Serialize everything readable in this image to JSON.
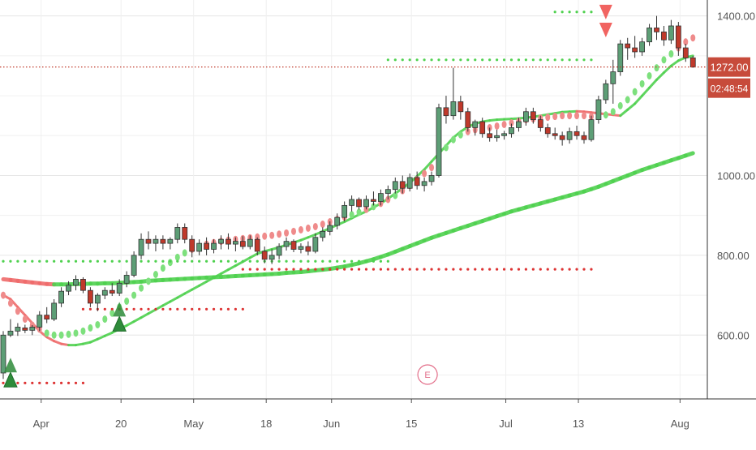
{
  "chart_data": {
    "type": "candlestick",
    "y_axis": {
      "ticks": [
        600,
        800,
        1000,
        1400
      ],
      "tick_labels": [
        "600.00",
        "800.00",
        "1000.00",
        "1400.00"
      ],
      "ylim": [
        440,
        1440
      ]
    },
    "x_axis": {
      "tick_labels": [
        "Apr",
        "20",
        "May",
        "18",
        "Jun",
        "15",
        "Jul",
        "13",
        "Aug"
      ]
    },
    "price_badges": {
      "last_price": "1272.00",
      "countdown": "02:48:54"
    },
    "event_marker": "E",
    "candles": [
      {
        "o": 505,
        "h": 610,
        "l": 490,
        "c": 600
      },
      {
        "o": 600,
        "h": 640,
        "l": 595,
        "c": 610
      },
      {
        "o": 610,
        "h": 630,
        "l": 598,
        "c": 620
      },
      {
        "o": 618,
        "h": 626,
        "l": 605,
        "c": 612
      },
      {
        "o": 612,
        "h": 625,
        "l": 600,
        "c": 620
      },
      {
        "o": 620,
        "h": 660,
        "l": 610,
        "c": 650
      },
      {
        "o": 650,
        "h": 670,
        "l": 630,
        "c": 640
      },
      {
        "o": 640,
        "h": 690,
        "l": 635,
        "c": 680
      },
      {
        "o": 680,
        "h": 720,
        "l": 670,
        "c": 710
      },
      {
        "o": 710,
        "h": 735,
        "l": 700,
        "c": 725
      },
      {
        "o": 725,
        "h": 750,
        "l": 712,
        "c": 740
      },
      {
        "o": 740,
        "h": 745,
        "l": 705,
        "c": 712
      },
      {
        "o": 712,
        "h": 720,
        "l": 670,
        "c": 680
      },
      {
        "o": 680,
        "h": 705,
        "l": 660,
        "c": 700
      },
      {
        "o": 700,
        "h": 720,
        "l": 690,
        "c": 712
      },
      {
        "o": 712,
        "h": 730,
        "l": 698,
        "c": 705
      },
      {
        "o": 705,
        "h": 740,
        "l": 698,
        "c": 730
      },
      {
        "o": 730,
        "h": 760,
        "l": 720,
        "c": 750
      },
      {
        "o": 750,
        "h": 810,
        "l": 745,
        "c": 800
      },
      {
        "o": 800,
        "h": 855,
        "l": 790,
        "c": 840
      },
      {
        "o": 840,
        "h": 860,
        "l": 815,
        "c": 830
      },
      {
        "o": 830,
        "h": 850,
        "l": 810,
        "c": 840
      },
      {
        "o": 840,
        "h": 850,
        "l": 815,
        "c": 830
      },
      {
        "o": 830,
        "h": 845,
        "l": 815,
        "c": 840
      },
      {
        "o": 840,
        "h": 880,
        "l": 830,
        "c": 870
      },
      {
        "o": 870,
        "h": 880,
        "l": 830,
        "c": 840
      },
      {
        "o": 840,
        "h": 850,
        "l": 795,
        "c": 810
      },
      {
        "o": 810,
        "h": 840,
        "l": 800,
        "c": 830
      },
      {
        "o": 830,
        "h": 845,
        "l": 800,
        "c": 815
      },
      {
        "o": 815,
        "h": 840,
        "l": 805,
        "c": 830
      },
      {
        "o": 830,
        "h": 850,
        "l": 815,
        "c": 840
      },
      {
        "o": 840,
        "h": 855,
        "l": 815,
        "c": 828
      },
      {
        "o": 828,
        "h": 845,
        "l": 810,
        "c": 835
      },
      {
        "o": 835,
        "h": 848,
        "l": 815,
        "c": 822
      },
      {
        "o": 822,
        "h": 850,
        "l": 815,
        "c": 840
      },
      {
        "o": 840,
        "h": 845,
        "l": 800,
        "c": 810
      },
      {
        "o": 810,
        "h": 822,
        "l": 780,
        "c": 790
      },
      {
        "o": 790,
        "h": 815,
        "l": 778,
        "c": 800
      },
      {
        "o": 800,
        "h": 830,
        "l": 790,
        "c": 822
      },
      {
        "o": 822,
        "h": 845,
        "l": 812,
        "c": 835
      },
      {
        "o": 835,
        "h": 840,
        "l": 808,
        "c": 815
      },
      {
        "o": 815,
        "h": 830,
        "l": 805,
        "c": 822
      },
      {
        "o": 822,
        "h": 835,
        "l": 800,
        "c": 810
      },
      {
        "o": 810,
        "h": 855,
        "l": 805,
        "c": 845
      },
      {
        "o": 845,
        "h": 870,
        "l": 835,
        "c": 860
      },
      {
        "o": 860,
        "h": 885,
        "l": 850,
        "c": 875
      },
      {
        "o": 875,
        "h": 905,
        "l": 865,
        "c": 895
      },
      {
        "o": 895,
        "h": 935,
        "l": 885,
        "c": 925
      },
      {
        "o": 925,
        "h": 950,
        "l": 910,
        "c": 940
      },
      {
        "o": 940,
        "h": 945,
        "l": 915,
        "c": 922
      },
      {
        "o": 922,
        "h": 950,
        "l": 915,
        "c": 940
      },
      {
        "o": 940,
        "h": 960,
        "l": 925,
        "c": 935
      },
      {
        "o": 935,
        "h": 965,
        "l": 925,
        "c": 955
      },
      {
        "o": 955,
        "h": 975,
        "l": 940,
        "c": 965
      },
      {
        "o": 965,
        "h": 995,
        "l": 955,
        "c": 985
      },
      {
        "o": 985,
        "h": 1000,
        "l": 955,
        "c": 968
      },
      {
        "o": 968,
        "h": 1005,
        "l": 960,
        "c": 995
      },
      {
        "o": 995,
        "h": 1010,
        "l": 965,
        "c": 975
      },
      {
        "o": 975,
        "h": 995,
        "l": 960,
        "c": 985
      },
      {
        "o": 985,
        "h": 1010,
        "l": 975,
        "c": 1000
      },
      {
        "o": 1000,
        "h": 1180,
        "l": 995,
        "c": 1170
      },
      {
        "o": 1170,
        "h": 1200,
        "l": 1130,
        "c": 1150
      },
      {
        "o": 1150,
        "h": 1270,
        "l": 1140,
        "c": 1185
      },
      {
        "o": 1185,
        "h": 1200,
        "l": 1140,
        "c": 1160
      },
      {
        "o": 1160,
        "h": 1170,
        "l": 1110,
        "c": 1120
      },
      {
        "o": 1120,
        "h": 1140,
        "l": 1100,
        "c": 1135
      },
      {
        "o": 1135,
        "h": 1145,
        "l": 1095,
        "c": 1105
      },
      {
        "o": 1105,
        "h": 1120,
        "l": 1085,
        "c": 1095
      },
      {
        "o": 1095,
        "h": 1115,
        "l": 1085,
        "c": 1100
      },
      {
        "o": 1100,
        "h": 1112,
        "l": 1090,
        "c": 1105
      },
      {
        "o": 1105,
        "h": 1130,
        "l": 1095,
        "c": 1120
      },
      {
        "o": 1120,
        "h": 1145,
        "l": 1110,
        "c": 1135
      },
      {
        "o": 1135,
        "h": 1170,
        "l": 1125,
        "c": 1160
      },
      {
        "o": 1160,
        "h": 1170,
        "l": 1130,
        "c": 1140
      },
      {
        "o": 1140,
        "h": 1150,
        "l": 1110,
        "c": 1120
      },
      {
        "o": 1120,
        "h": 1130,
        "l": 1095,
        "c": 1105
      },
      {
        "o": 1105,
        "h": 1120,
        "l": 1090,
        "c": 1100
      },
      {
        "o": 1100,
        "h": 1110,
        "l": 1075,
        "c": 1090
      },
      {
        "o": 1090,
        "h": 1120,
        "l": 1080,
        "c": 1110
      },
      {
        "o": 1110,
        "h": 1125,
        "l": 1090,
        "c": 1100
      },
      {
        "o": 1100,
        "h": 1110,
        "l": 1080,
        "c": 1090
      },
      {
        "o": 1090,
        "h": 1150,
        "l": 1085,
        "c": 1140
      },
      {
        "o": 1140,
        "h": 1200,
        "l": 1130,
        "c": 1190
      },
      {
        "o": 1190,
        "h": 1240,
        "l": 1180,
        "c": 1230
      },
      {
        "o": 1230,
        "h": 1290,
        "l": 1180,
        "c": 1260
      },
      {
        "o": 1260,
        "h": 1340,
        "l": 1250,
        "c": 1330
      },
      {
        "o": 1330,
        "h": 1345,
        "l": 1290,
        "c": 1320
      },
      {
        "o": 1320,
        "h": 1350,
        "l": 1295,
        "c": 1310
      },
      {
        "o": 1310,
        "h": 1345,
        "l": 1300,
        "c": 1335
      },
      {
        "o": 1335,
        "h": 1380,
        "l": 1325,
        "c": 1370
      },
      {
        "o": 1370,
        "h": 1400,
        "l": 1340,
        "c": 1360
      },
      {
        "o": 1360,
        "h": 1375,
        "l": 1325,
        "c": 1340
      },
      {
        "o": 1340,
        "h": 1390,
        "l": 1330,
        "c": 1375
      },
      {
        "o": 1375,
        "h": 1385,
        "l": 1300,
        "c": 1320
      },
      {
        "o": 1320,
        "h": 1330,
        "l": 1285,
        "c": 1295
      },
      {
        "o": 1295,
        "h": 1300,
        "l": 1270,
        "c": 1272
      }
    ],
    "series": [
      {
        "kind": "line",
        "color_rising": "#4fd14f",
        "color_falling": "#ef6b6b",
        "values": [
          740,
          738,
          736,
          734,
          732,
          730,
          728,
          727,
          727,
          727,
          728,
          728,
          729,
          729,
          730,
          730,
          731,
          732,
          733,
          734,
          736,
          737,
          738,
          739,
          740,
          741,
          742,
          743,
          744,
          745,
          746,
          747,
          748,
          749,
          750,
          751,
          752,
          753,
          754,
          756,
          757,
          758,
          760,
          762,
          764,
          766,
          769,
          772,
          776,
          780,
          785,
          790,
          796,
          802,
          809,
          816,
          823,
          830,
          837,
          844,
          850,
          856,
          862,
          868,
          874,
          880,
          886,
          892,
          898,
          904,
          910,
          915,
          920,
          925,
          930,
          935,
          940,
          945,
          950,
          955,
          960,
          966,
          972,
          979,
          986,
          993,
          1000,
          1007,
          1014,
          1020,
          1026,
          1032,
          1038,
          1044,
          1050,
          1056
        ]
      },
      {
        "kind": "line",
        "values": [
          700,
          690,
          670,
          650,
          630,
          610,
          595,
          585,
          578,
          575,
          575,
          578,
          582,
          590,
          598,
          606,
          615,
          624,
          634,
          644,
          654,
          664,
          674,
          684,
          694,
          704,
          714,
          724,
          734,
          744,
          754,
          764,
          774,
          784,
          794,
          804,
          810,
          815,
          820,
          826,
          832,
          838,
          845,
          852,
          860,
          868,
          876,
          884,
          893,
          902,
          910,
          920,
          930,
          942,
          955,
          968,
          982,
          998,
          1015,
          1035,
          1055,
          1075,
          1095,
          1110,
          1122,
          1130,
          1135,
          1138,
          1140,
          1141,
          1142,
          1143,
          1145,
          1147,
          1150,
          1153,
          1156,
          1159,
          1160,
          1161,
          1160,
          1158,
          1156,
          1154,
          1152,
          1150,
          1165,
          1180,
          1200,
          1220,
          1240,
          1258,
          1275,
          1288,
          1296,
          1300
        ]
      },
      {
        "kind": "dots",
        "values": [
          700,
          680,
          660,
          640,
          625,
          615,
          605,
          600,
          600,
          602,
          605,
          610,
          618,
          626,
          640,
          655,
          670,
          685,
          700,
          718,
          735,
          752,
          768,
          782,
          795,
          806,
          815,
          822,
          828,
          832,
          835,
          838,
          840,
          842,
          844,
          846,
          848,
          850,
          853,
          856,
          860,
          864,
          868,
          872,
          878,
          884,
          890,
          896,
          902,
          908,
          915,
          922,
          930,
          940,
          950,
          962,
          975,
          990,
          1005,
          1020,
          1045,
          1070,
          1090,
          1102,
          1110,
          1115,
          1118,
          1120,
          1124,
          1128,
          1132,
          1136,
          1140,
          1142,
          1144,
          1146,
          1148,
          1150,
          1150,
          1150,
          1150,
          1148,
          1148,
          1152,
          1160,
          1175,
          1190,
          1210,
          1230,
          1250,
          1270,
          1290,
          1305,
          1320,
          1335,
          1345
        ]
      },
      {
        "kind": "step_dots",
        "segments": [
          {
            "level": 785,
            "from": 0,
            "to": 53
          },
          {
            "level": 665,
            "from": 11,
            "to": 33
          },
          {
            "level": 480,
            "from": 0,
            "to": 11
          },
          {
            "level": 765,
            "from": 33,
            "to": 81
          },
          {
            "level": 1290,
            "from": 53,
            "to": 81
          },
          {
            "level": 1410,
            "from": 76,
            "to": 81
          }
        ]
      }
    ],
    "signals": [
      {
        "type": "buy",
        "index": 1,
        "value": 470
      },
      {
        "type": "buy",
        "index": 16,
        "value": 610
      },
      {
        "type": "sell",
        "index": 83,
        "value": 1420
      },
      {
        "type": "sell",
        "index": 83,
        "value": 1375
      }
    ],
    "colors": {
      "up_candle": "#5d9e76",
      "down_candle": "#c0392b",
      "grid": "#e6e6e6",
      "price_line": "#c0392b"
    }
  }
}
